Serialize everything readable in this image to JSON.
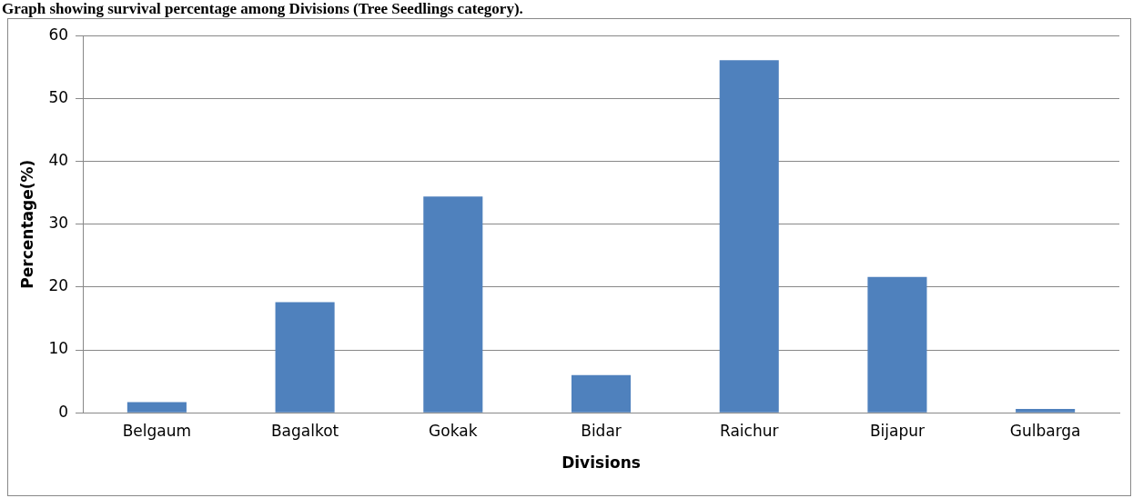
{
  "chart_data": {
    "type": "bar",
    "title": "Graph showing survival percentage among Divisions (Tree Seedlings category).",
    "xlabel": "Divisions",
    "ylabel": "Percentage(%)",
    "categories": [
      "Belgaum",
      "Bagalkot",
      "Gokak",
      "Bidar",
      "Raichur",
      "Bijapur",
      "Gulbarga"
    ],
    "values": [
      1.7,
      17.6,
      34.4,
      6.0,
      56.1,
      21.6,
      0.6
    ],
    "color": "#4f81bd",
    "ylim": [
      0,
      60
    ],
    "yticks": [
      0,
      10,
      20,
      30,
      40,
      50,
      60
    ],
    "grid": "y",
    "legend": false
  }
}
